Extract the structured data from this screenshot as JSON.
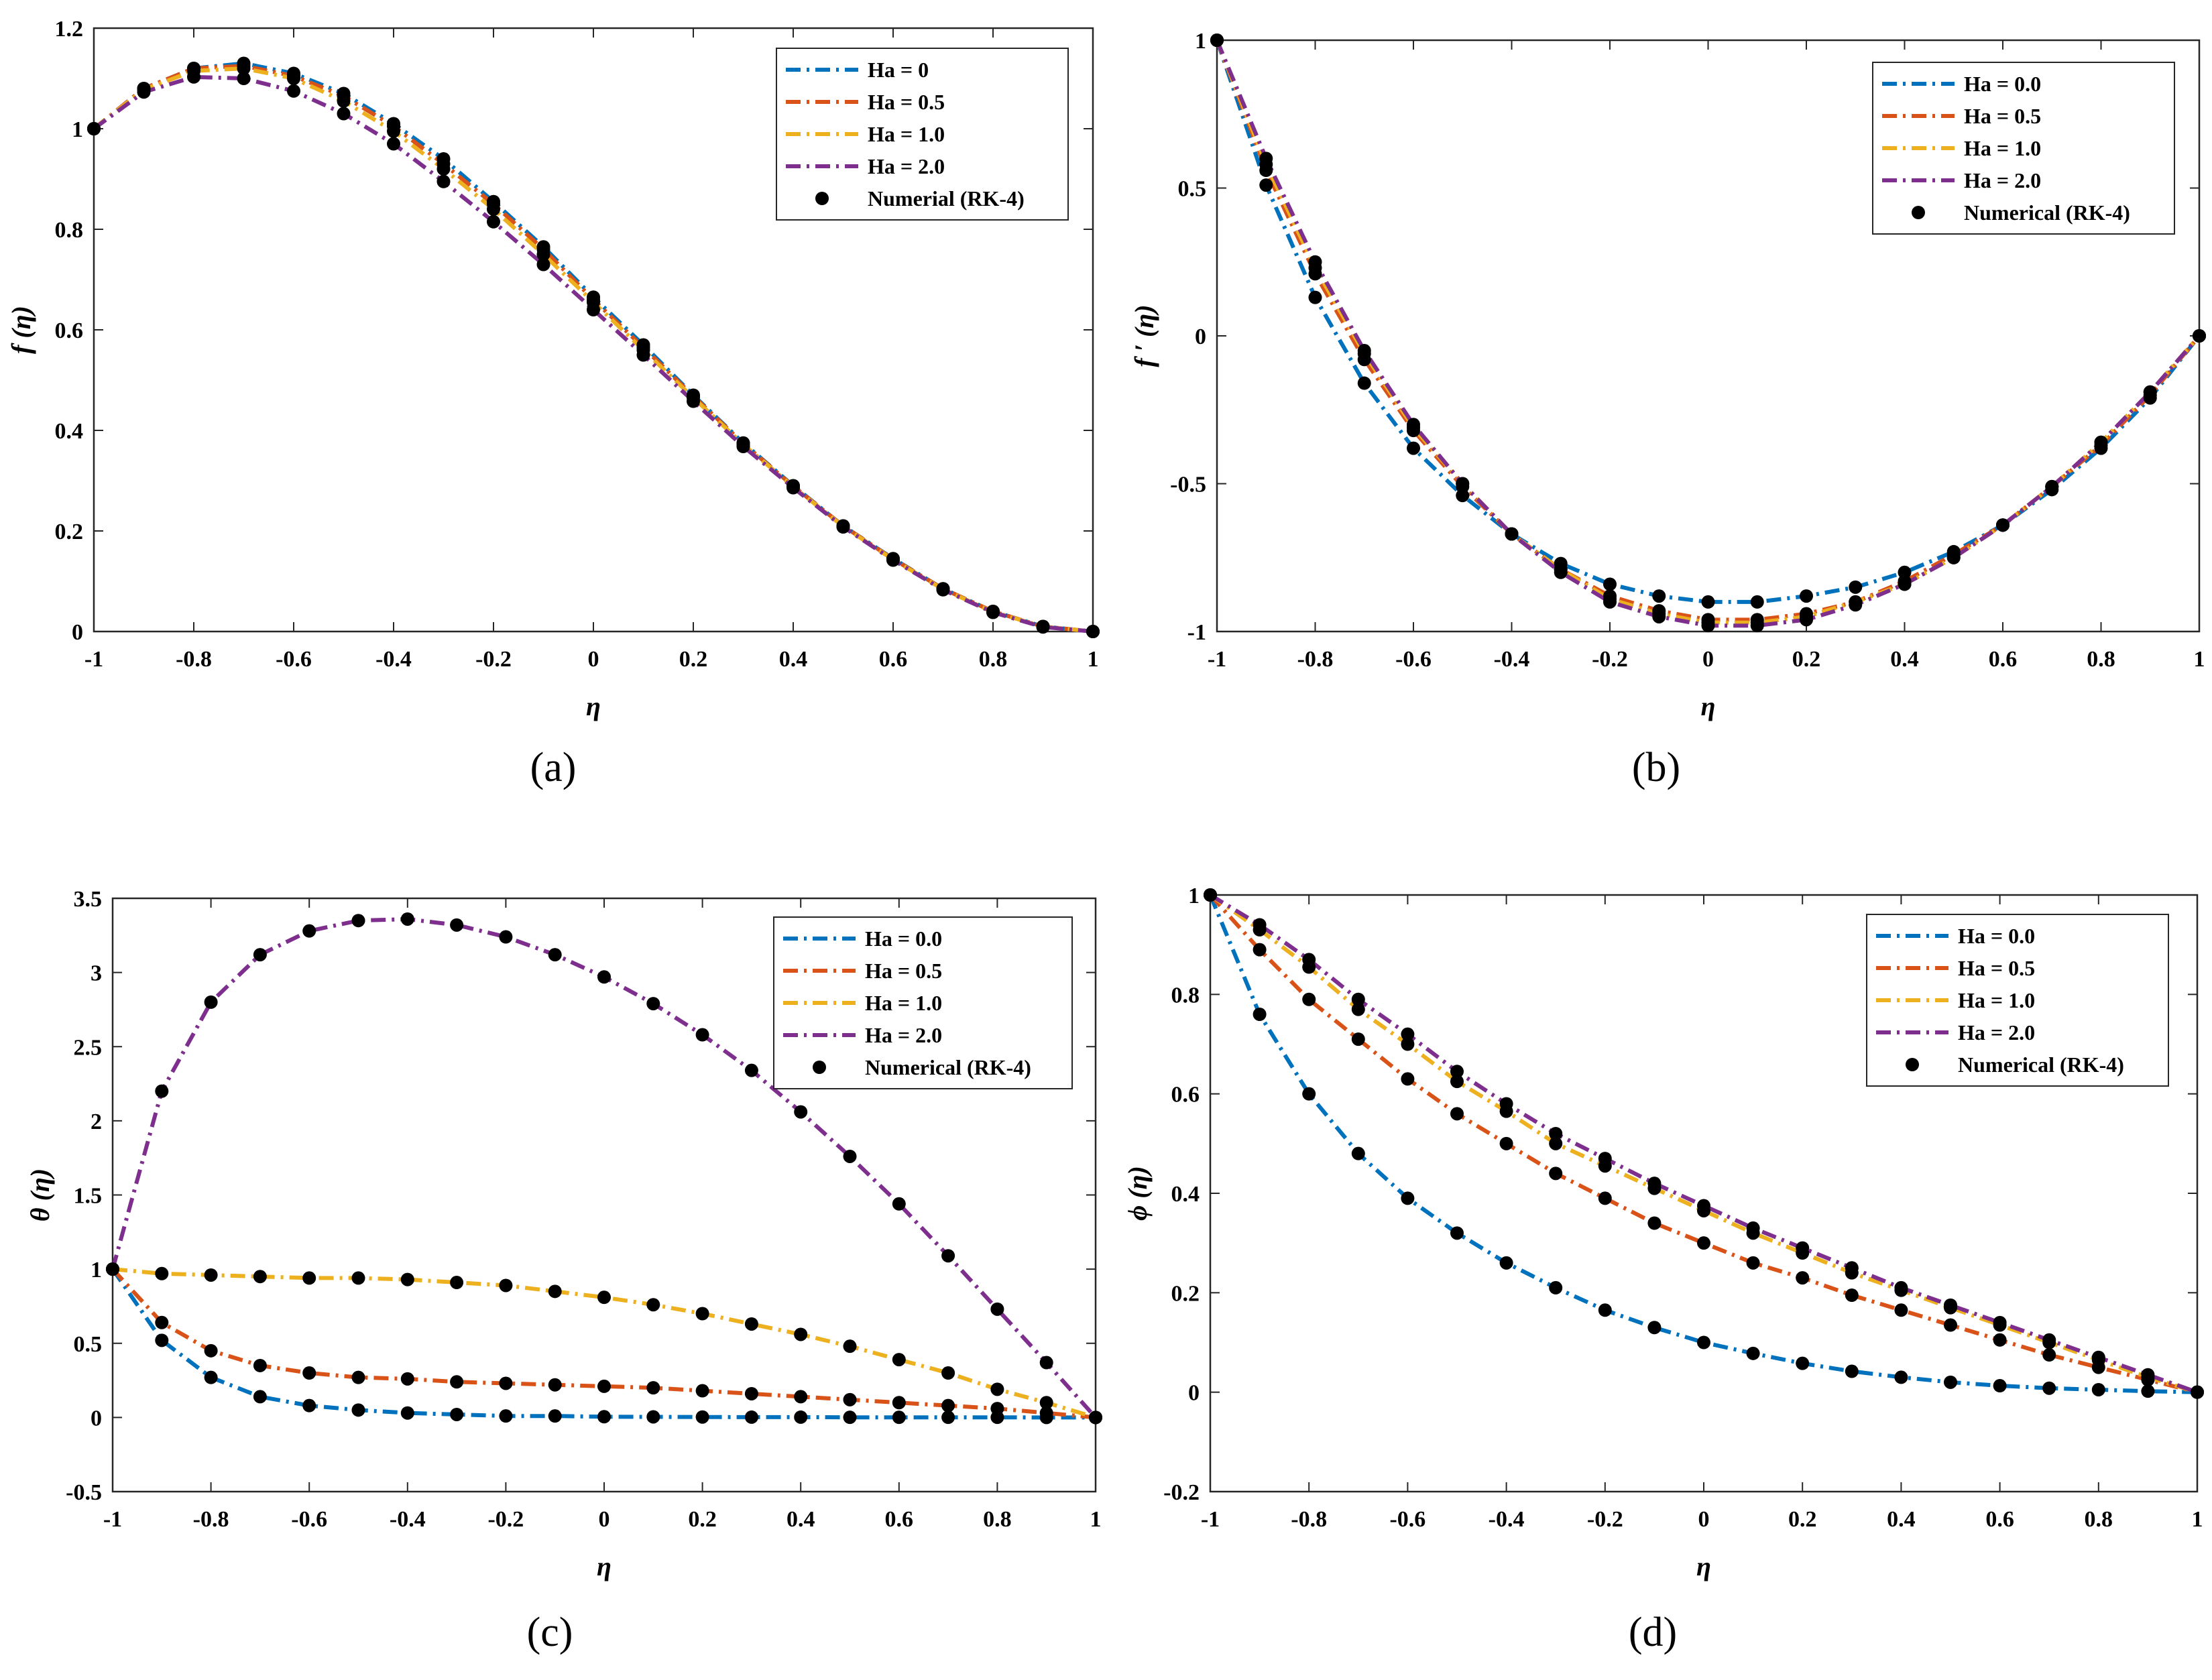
{
  "colors": {
    "s0": "#0072BD",
    "s1": "#D95319",
    "s2": "#EDB120",
    "s3": "#7E2F8E",
    "points": "#000000"
  },
  "chart_data": [
    {
      "type": "line",
      "caption": "(a)",
      "xlabel": "η",
      "ylabel": "f (η)",
      "xlim": [
        -1,
        1
      ],
      "ylim": [
        0,
        1.2
      ],
      "xticks": [
        -1,
        -0.8,
        -0.6,
        -0.4,
        -0.2,
        0,
        0.2,
        0.4,
        0.6,
        0.8,
        1
      ],
      "xtick_labels": [
        "-1",
        "-0.8",
        "-0.6",
        "-0.4",
        "-0.2",
        "0",
        "0.2",
        "0.4",
        "0.6",
        "0.8",
        "1"
      ],
      "yticks": [
        0,
        0.2,
        0.4,
        0.6,
        0.8,
        1,
        1.2
      ],
      "ytick_labels": [
        "0",
        "0.2",
        "0.4",
        "0.6",
        "0.8",
        "1",
        "1.2"
      ],
      "legend_position": "top-right",
      "marker_label": "Numerial (RK-4)",
      "x": [
        -1,
        -0.9,
        -0.8,
        -0.7,
        -0.6,
        -0.5,
        -0.4,
        -0.3,
        -0.2,
        -0.1,
        0,
        0.1,
        0.2,
        0.3,
        0.4,
        0.5,
        0.6,
        0.7,
        0.8,
        0.9,
        1
      ],
      "series": [
        {
          "name": "Ha = 0",
          "values": [
            1.0,
            1.08,
            1.12,
            1.13,
            1.11,
            1.07,
            1.01,
            0.94,
            0.855,
            0.765,
            0.665,
            0.57,
            0.47,
            0.375,
            0.29,
            0.21,
            0.145,
            0.085,
            0.04,
            0.01,
            0.0
          ]
        },
        {
          "name": "Ha = 0.5",
          "values": [
            1.0,
            1.08,
            1.12,
            1.125,
            1.105,
            1.065,
            1.005,
            0.93,
            0.85,
            0.76,
            0.66,
            0.565,
            0.468,
            0.374,
            0.289,
            0.21,
            0.144,
            0.085,
            0.04,
            0.01,
            0.0
          ]
        },
        {
          "name": "Ha = 1.0",
          "values": [
            1.0,
            1.078,
            1.115,
            1.12,
            1.1,
            1.055,
            0.995,
            0.92,
            0.84,
            0.75,
            0.655,
            0.56,
            0.465,
            0.372,
            0.288,
            0.209,
            0.143,
            0.084,
            0.039,
            0.01,
            0.0
          ]
        },
        {
          "name": "Ha = 2.0",
          "values": [
            1.0,
            1.073,
            1.103,
            1.1,
            1.075,
            1.03,
            0.97,
            0.895,
            0.815,
            0.73,
            0.64,
            0.55,
            0.458,
            0.368,
            0.286,
            0.208,
            0.142,
            0.083,
            0.038,
            0.009,
            0.0
          ]
        }
      ]
    },
    {
      "type": "line",
      "caption": "(b)",
      "xlabel": "η",
      "ylabel": "f ′ (η)",
      "xlim": [
        -1,
        1
      ],
      "ylim": [
        -1,
        1
      ],
      "xticks": [
        -1,
        -0.8,
        -0.6,
        -0.4,
        -0.2,
        0,
        0.2,
        0.4,
        0.6,
        0.8,
        1
      ],
      "xtick_labels": [
        "-1",
        "-0.8",
        "-0.6",
        "-0.4",
        "-0.2",
        "0",
        "0.2",
        "0.4",
        "0.6",
        "0.8",
        "1"
      ],
      "yticks": [
        -1,
        -0.5,
        0,
        0.5,
        1
      ],
      "ytick_labels": [
        "-1",
        "-0.5",
        "0",
        "0.5",
        "1"
      ],
      "legend_position": "top-right",
      "marker_label": "Numerical (RK-4)",
      "x": [
        -1,
        -0.9,
        -0.8,
        -0.7,
        -0.6,
        -0.5,
        -0.4,
        -0.3,
        -0.2,
        -0.1,
        0,
        0.1,
        0.2,
        0.3,
        0.4,
        0.5,
        0.6,
        0.7,
        0.8,
        0.9,
        1
      ],
      "series": [
        {
          "name": "Ha = 0.0",
          "values": [
            1.0,
            0.51,
            0.13,
            -0.16,
            -0.38,
            -0.54,
            -0.67,
            -0.77,
            -0.84,
            -0.88,
            -0.9,
            -0.9,
            -0.88,
            -0.85,
            -0.8,
            -0.73,
            -0.64,
            -0.52,
            -0.38,
            -0.21,
            0.0
          ]
        },
        {
          "name": "Ha = 0.5",
          "values": [
            1.0,
            0.56,
            0.21,
            -0.08,
            -0.32,
            -0.51,
            -0.67,
            -0.79,
            -0.88,
            -0.93,
            -0.96,
            -0.96,
            -0.94,
            -0.9,
            -0.83,
            -0.74,
            -0.64,
            -0.51,
            -0.37,
            -0.2,
            0.0
          ]
        },
        {
          "name": "Ha = 1.0",
          "values": [
            1.0,
            0.58,
            0.23,
            -0.06,
            -0.31,
            -0.5,
            -0.67,
            -0.79,
            -0.89,
            -0.94,
            -0.97,
            -0.97,
            -0.95,
            -0.9,
            -0.84,
            -0.75,
            -0.64,
            -0.51,
            -0.36,
            -0.19,
            0.0
          ]
        },
        {
          "name": "Ha = 2.0",
          "values": [
            1.0,
            0.6,
            0.25,
            -0.05,
            -0.3,
            -0.5,
            -0.67,
            -0.8,
            -0.9,
            -0.95,
            -0.98,
            -0.98,
            -0.96,
            -0.91,
            -0.84,
            -0.75,
            -0.64,
            -0.51,
            -0.36,
            -0.19,
            0.0
          ]
        }
      ]
    },
    {
      "type": "line",
      "caption": "(c)",
      "xlabel": "η",
      "ylabel": "θ (η)",
      "xlim": [
        -1,
        1
      ],
      "ylim": [
        -0.5,
        3.5
      ],
      "xticks": [
        -1,
        -0.8,
        -0.6,
        -0.4,
        -0.2,
        0,
        0.2,
        0.4,
        0.6,
        0.8,
        1
      ],
      "xtick_labels": [
        "-1",
        "-0.8",
        "-0.6",
        "-0.4",
        "-0.2",
        "0",
        "0.2",
        "0.4",
        "0.6",
        "0.8",
        "1"
      ],
      "yticks": [
        -0.5,
        0,
        0.5,
        1,
        1.5,
        2,
        2.5,
        3,
        3.5
      ],
      "ytick_labels": [
        "-0.5",
        "0",
        "0.5",
        "1",
        "1.5",
        "2",
        "2.5",
        "3",
        "3.5"
      ],
      "legend_position": "top-right",
      "marker_label": "Numerical (RK-4)",
      "x": [
        -1,
        -0.9,
        -0.8,
        -0.7,
        -0.6,
        -0.5,
        -0.4,
        -0.3,
        -0.2,
        -0.1,
        0,
        0.1,
        0.2,
        0.3,
        0.4,
        0.5,
        0.6,
        0.7,
        0.8,
        0.9,
        1
      ],
      "series": [
        {
          "name": "Ha = 0.0",
          "values": [
            1.0,
            0.52,
            0.27,
            0.14,
            0.08,
            0.05,
            0.03,
            0.02,
            0.01,
            0.01,
            0.005,
            0.004,
            0.003,
            0.002,
            0.002,
            0.001,
            0.001,
            0.001,
            0.001,
            0.0,
            0.0
          ]
        },
        {
          "name": "Ha = 0.5",
          "values": [
            1.0,
            0.64,
            0.45,
            0.35,
            0.3,
            0.27,
            0.26,
            0.24,
            0.23,
            0.22,
            0.21,
            0.2,
            0.18,
            0.16,
            0.14,
            0.12,
            0.1,
            0.08,
            0.06,
            0.03,
            0.0
          ]
        },
        {
          "name": "Ha = 1.0",
          "values": [
            1.0,
            0.97,
            0.96,
            0.95,
            0.94,
            0.94,
            0.93,
            0.91,
            0.89,
            0.85,
            0.81,
            0.76,
            0.7,
            0.63,
            0.56,
            0.48,
            0.39,
            0.3,
            0.19,
            0.1,
            0.0
          ]
        },
        {
          "name": "Ha = 2.0",
          "values": [
            1.0,
            2.2,
            2.8,
            3.12,
            3.28,
            3.35,
            3.36,
            3.32,
            3.24,
            3.12,
            2.97,
            2.79,
            2.58,
            2.34,
            2.06,
            1.76,
            1.44,
            1.09,
            0.73,
            0.37,
            0.0
          ]
        }
      ]
    },
    {
      "type": "line",
      "caption": "(d)",
      "xlabel": "η",
      "ylabel": "ϕ (η)",
      "xlim": [
        -1,
        1
      ],
      "ylim": [
        -0.2,
        1
      ],
      "xticks": [
        -1,
        -0.8,
        -0.6,
        -0.4,
        -0.2,
        0,
        0.2,
        0.4,
        0.6,
        0.8,
        1
      ],
      "xtick_labels": [
        "-1",
        "-0.8",
        "-0.6",
        "-0.4",
        "-0.2",
        "0",
        "0.2",
        "0.4",
        "0.6",
        "0.8",
        "1"
      ],
      "yticks": [
        -0.2,
        0,
        0.2,
        0.4,
        0.6,
        0.8,
        1
      ],
      "ytick_labels": [
        "-0.2",
        "0",
        "0.2",
        "0.4",
        "0.6",
        "0.8",
        "1"
      ],
      "legend_position": "top-right",
      "marker_label": "Numerical (RK-4)",
      "x": [
        -1,
        -0.9,
        -0.8,
        -0.7,
        -0.6,
        -0.5,
        -0.4,
        -0.3,
        -0.2,
        -0.1,
        0,
        0.1,
        0.2,
        0.3,
        0.4,
        0.5,
        0.6,
        0.7,
        0.8,
        0.9,
        1
      ],
      "series": [
        {
          "name": "Ha = 0.0",
          "values": [
            1.0,
            0.76,
            0.6,
            0.48,
            0.39,
            0.32,
            0.26,
            0.21,
            0.165,
            0.13,
            0.1,
            0.078,
            0.058,
            0.042,
            0.03,
            0.02,
            0.013,
            0.008,
            0.005,
            0.002,
            0.0
          ]
        },
        {
          "name": "Ha = 0.5",
          "values": [
            1.0,
            0.89,
            0.79,
            0.71,
            0.63,
            0.56,
            0.5,
            0.44,
            0.39,
            0.34,
            0.3,
            0.26,
            0.23,
            0.195,
            0.165,
            0.135,
            0.105,
            0.075,
            0.05,
            0.025,
            0.0
          ]
        },
        {
          "name": "Ha = 1.0",
          "values": [
            1.0,
            0.93,
            0.855,
            0.77,
            0.7,
            0.625,
            0.565,
            0.5,
            0.455,
            0.41,
            0.365,
            0.32,
            0.28,
            0.24,
            0.205,
            0.17,
            0.135,
            0.1,
            0.065,
            0.03,
            0.0
          ]
        },
        {
          "name": "Ha = 2.0",
          "values": [
            1.0,
            0.94,
            0.87,
            0.79,
            0.72,
            0.645,
            0.58,
            0.52,
            0.47,
            0.42,
            0.375,
            0.33,
            0.29,
            0.25,
            0.21,
            0.175,
            0.14,
            0.105,
            0.07,
            0.035,
            0.0
          ]
        }
      ]
    }
  ]
}
